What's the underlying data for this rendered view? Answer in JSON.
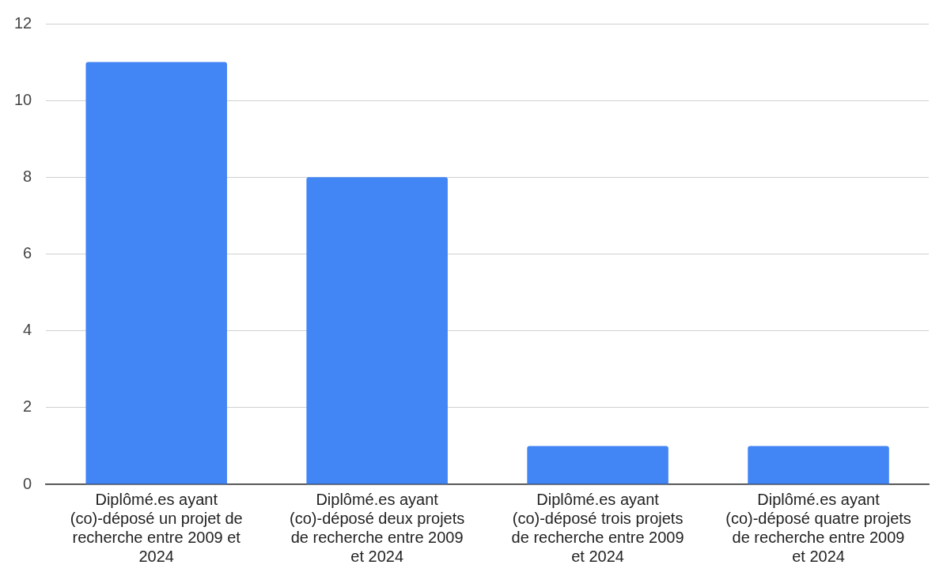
{
  "chart_data": {
    "type": "bar",
    "categories": [
      "Diplômé.es ayant (co)-déposé un projet de recherche entre 2009 et 2024",
      "Diplômé.es ayant (co)-déposé deux projets de recherche entre 2009 et 2024",
      "Diplômé.es ayant (co)-déposé trois projets de recherche entre 2009 et 2024",
      "Diplômé.es ayant (co)-déposé quatre projets de recherche entre 2009 et 2024"
    ],
    "values": [
      11,
      8,
      1,
      1
    ],
    "color": "#4285f4",
    "ylim": [
      0,
      12
    ],
    "yticks": [
      0,
      2,
      4,
      6,
      8,
      10,
      12
    ],
    "grid": "y",
    "legend": false
  }
}
